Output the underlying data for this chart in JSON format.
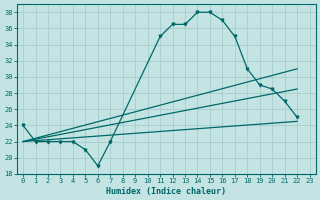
{
  "xlabel": "Humidex (Indice chaleur)",
  "bg_color": "#c4e4e4",
  "grid_color": "#a8cccc",
  "line_color": "#006868",
  "xlim": [
    -0.5,
    23.5
  ],
  "ylim": [
    18,
    39
  ],
  "xticks": [
    0,
    1,
    2,
    3,
    4,
    5,
    6,
    7,
    8,
    9,
    10,
    11,
    12,
    13,
    14,
    15,
    16,
    17,
    18,
    19,
    20,
    21,
    22,
    23
  ],
  "yticks": [
    18,
    20,
    22,
    24,
    26,
    28,
    30,
    32,
    34,
    36,
    38
  ],
  "curve1_x": [
    0,
    1,
    2,
    3,
    4,
    5,
    6,
    7,
    11,
    12,
    13,
    14,
    15,
    16,
    17,
    18,
    19,
    20,
    21,
    22
  ],
  "curve1_y": [
    24,
    22,
    22,
    22,
    22,
    21,
    19,
    22,
    35,
    36.5,
    36.5,
    38,
    38,
    37,
    35,
    31,
    29,
    28.5,
    27,
    25
  ],
  "curve2_x": [
    0,
    22
  ],
  "curve2_y": [
    22,
    31
  ],
  "curve3_x": [
    0,
    22
  ],
  "curve3_y": [
    22,
    28.5
  ],
  "curve4_x": [
    0,
    22
  ],
  "curve4_y": [
    22,
    24.5
  ]
}
